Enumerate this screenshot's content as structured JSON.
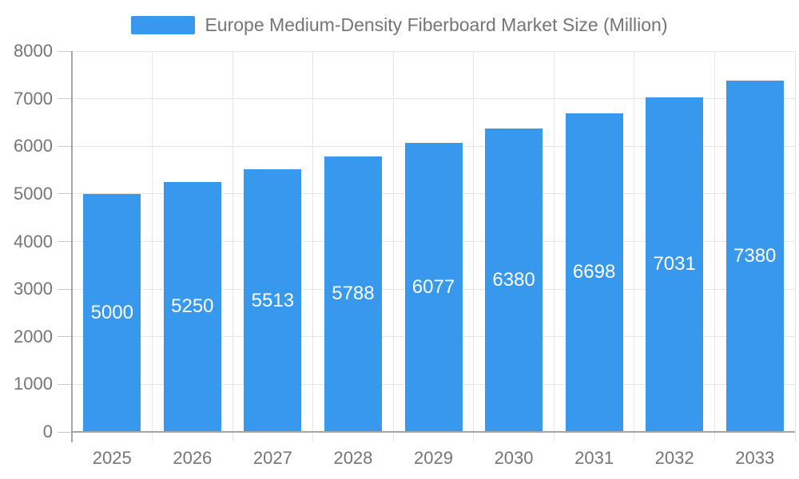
{
  "chart_data": {
    "type": "bar",
    "title": "Europe Medium-Density Fiberboard Market Size (Million)",
    "categories": [
      "2025",
      "2026",
      "2027",
      "2028",
      "2029",
      "2030",
      "2031",
      "2032",
      "2033"
    ],
    "values": [
      5000,
      5250,
      5513,
      5788,
      6077,
      6380,
      6698,
      7031,
      7380
    ],
    "xlabel": "",
    "ylabel": "",
    "ylim": [
      0,
      8000
    ],
    "ytick_step": 1000,
    "yticks": [
      0,
      1000,
      2000,
      3000,
      4000,
      5000,
      6000,
      7000,
      8000
    ],
    "legend_position": "top-center",
    "grid": true,
    "bar_label_position": "inside-middle",
    "colors": {
      "bar": "#3899EC",
      "bar_label": "#FFFFFF",
      "text": "#757575",
      "gridline": "#E6E6E6",
      "axis_line": "#A6A6A6",
      "tick": "#CCCCCC",
      "background": "#FFFFFF"
    }
  }
}
